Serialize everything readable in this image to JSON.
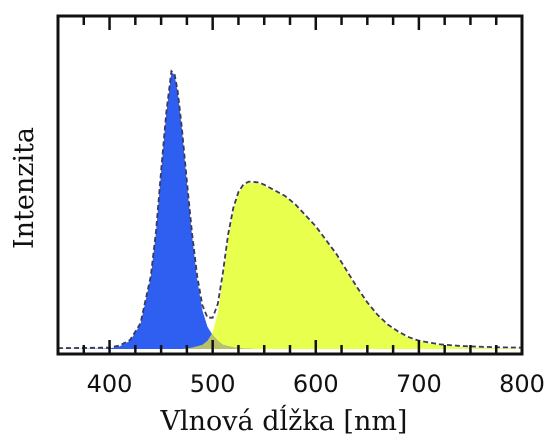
{
  "chart_data": {
    "type": "area",
    "title": "",
    "xlabel": "Vlnová dĺžka [nm]",
    "ylabel": "Intenzita",
    "xlim": [
      350,
      800
    ],
    "ylim": [
      0,
      1.0
    ],
    "x_ticks": [
      400,
      500,
      600,
      700,
      800
    ],
    "x_tick_labels": [
      "400",
      "500",
      "600",
      "700",
      "800"
    ],
    "grid": false,
    "legend": "none",
    "colors": {
      "blue": "#2e5ff0",
      "yellow": "#e9ff4d",
      "overlap": "#b7c06a",
      "envelope": "#3a3a5a"
    },
    "series": [
      {
        "x": [
          350,
          400,
          410,
          420,
          430,
          440,
          445,
          450,
          455,
          460,
          463,
          466,
          470,
          475,
          480,
          485,
          490,
          495,
          500,
          505,
          510,
          520,
          530,
          540
        ],
        "y": [
          0,
          0.002,
          0.01,
          0.03,
          0.09,
          0.26,
          0.42,
          0.64,
          0.85,
          1.0,
          0.99,
          0.93,
          0.8,
          0.6,
          0.41,
          0.25,
          0.14,
          0.08,
          0.05,
          0.03,
          0.015,
          0.006,
          0.002,
          0
        ]
      },
      {
        "x": [
          470,
          480,
          490,
          495,
          500,
          505,
          510,
          515,
          520,
          525,
          530,
          535,
          540,
          545,
          550,
          560,
          570,
          580,
          590,
          600,
          610,
          620,
          630,
          640,
          650,
          660,
          670,
          680,
          690,
          700,
          720,
          740,
          760,
          780,
          800
        ],
        "y": [
          0,
          0.005,
          0.015,
          0.03,
          0.06,
          0.13,
          0.26,
          0.4,
          0.5,
          0.56,
          0.59,
          0.6,
          0.6,
          0.598,
          0.59,
          0.57,
          0.55,
          0.52,
          0.48,
          0.44,
          0.39,
          0.34,
          0.28,
          0.22,
          0.165,
          0.12,
          0.085,
          0.06,
          0.04,
          0.027,
          0.014,
          0.008,
          0.005,
          0.003,
          0.002
        ]
      }
    ],
    "envelope_style": "dashed",
    "envelope_baseline": 0.003
  }
}
